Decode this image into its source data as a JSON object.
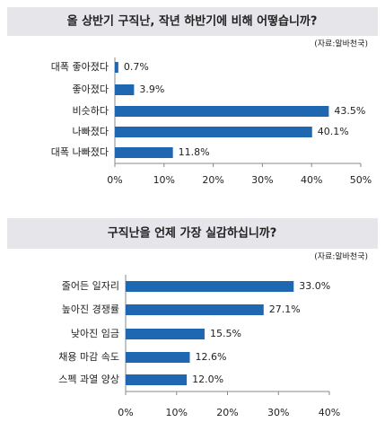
{
  "chart_data": [
    {
      "type": "bar",
      "orientation": "horizontal",
      "title": "올 상반기 구직난, 작년 하반기에 비해 어떻습니까?",
      "source": "(자료:알바천국)",
      "categories": [
        "대폭 좋아졌다",
        "좋아졌다",
        "비슷하다",
        "나빠졌다",
        "대폭 나빠졌다"
      ],
      "values": [
        0.7,
        3.9,
        43.5,
        40.1,
        11.8
      ],
      "value_labels": [
        "0.7%",
        "3.9%",
        "43.5%",
        "40.1%",
        "11.8%"
      ],
      "color": "#1f67b1",
      "xlim": [
        0,
        50
      ],
      "xticks": [
        {
          "value": 0,
          "label": "0%"
        },
        {
          "value": 10,
          "label": "10%"
        },
        {
          "value": 20,
          "label": "20%"
        },
        {
          "value": 30,
          "label": "30%"
        },
        {
          "value": 40,
          "label": "40%"
        },
        {
          "value": 50,
          "label": "50%"
        }
      ]
    },
    {
      "type": "bar",
      "orientation": "horizontal",
      "title": "구직난을 언제 가장 실감하십니까?",
      "source": "(자료:알바천국)",
      "categories": [
        "줄어든 일자리",
        "높아진 경쟁률",
        "낮아진 임금",
        "채용 마감 속도",
        "스펙 과열 양상"
      ],
      "values": [
        33.0,
        27.1,
        15.5,
        12.6,
        12.0
      ],
      "value_labels": [
        "33.0%",
        "27.1%",
        "15.5%",
        "12.6%",
        "12.0%"
      ],
      "color": "#1f67b1",
      "xlim": [
        0,
        40
      ],
      "xticks": [
        {
          "value": 0,
          "label": "0%"
        },
        {
          "value": 10,
          "label": "10%"
        },
        {
          "value": 20,
          "label": "20%"
        },
        {
          "value": 30,
          "label": "30%"
        },
        {
          "value": 40,
          "label": "40%"
        }
      ]
    }
  ]
}
